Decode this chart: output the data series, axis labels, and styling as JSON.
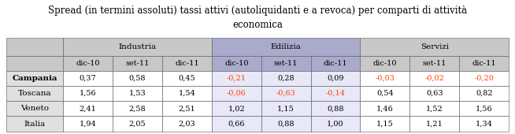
{
  "title": "Spread (in termini assoluti) tassi attivi (autoliquidanti e a revoca) per comparti di attività\neconomica",
  "col_groups": [
    "Industria",
    "Edilizia",
    "Servizi"
  ],
  "sub_cols": [
    "dic-10",
    "set-11",
    "dic-11"
  ],
  "rows": [
    "Campania",
    "Toscana",
    "Veneto",
    "Italia"
  ],
  "data": [
    [
      "0,37",
      "0,58",
      "0,45",
      "-0,21",
      "0,28",
      "0,09",
      "-0,03",
      "-0,02",
      "-0,20"
    ],
    [
      "1,56",
      "1,53",
      "1,54",
      "-0,06",
      "-0,63",
      "-0,14",
      "0,54",
      "0,63",
      "0,82"
    ],
    [
      "2,41",
      "2,58",
      "2,51",
      "1,02",
      "1,15",
      "0,88",
      "1,46",
      "1,52",
      "1,56"
    ],
    [
      "1,94",
      "2,05",
      "2,03",
      "0,66",
      "0,88",
      "1,00",
      "1,15",
      "1,21",
      "1,34"
    ]
  ],
  "negative_color": "#FF4500",
  "header_bg_industria": "#C8C8C8",
  "header_bg_edilizia": "#AAAACC",
  "header_bg_servizi": "#C8C8C8",
  "row_header_bg": "#E0E0E0",
  "cell_bg_normal": "#FFFFFF",
  "cell_bg_edilizia": "#E8E8F8",
  "border_color": "#555555",
  "title_fontsize": 8.5,
  "cell_fontsize": 7.5,
  "bold_rows": [
    true,
    false,
    false,
    false
  ]
}
